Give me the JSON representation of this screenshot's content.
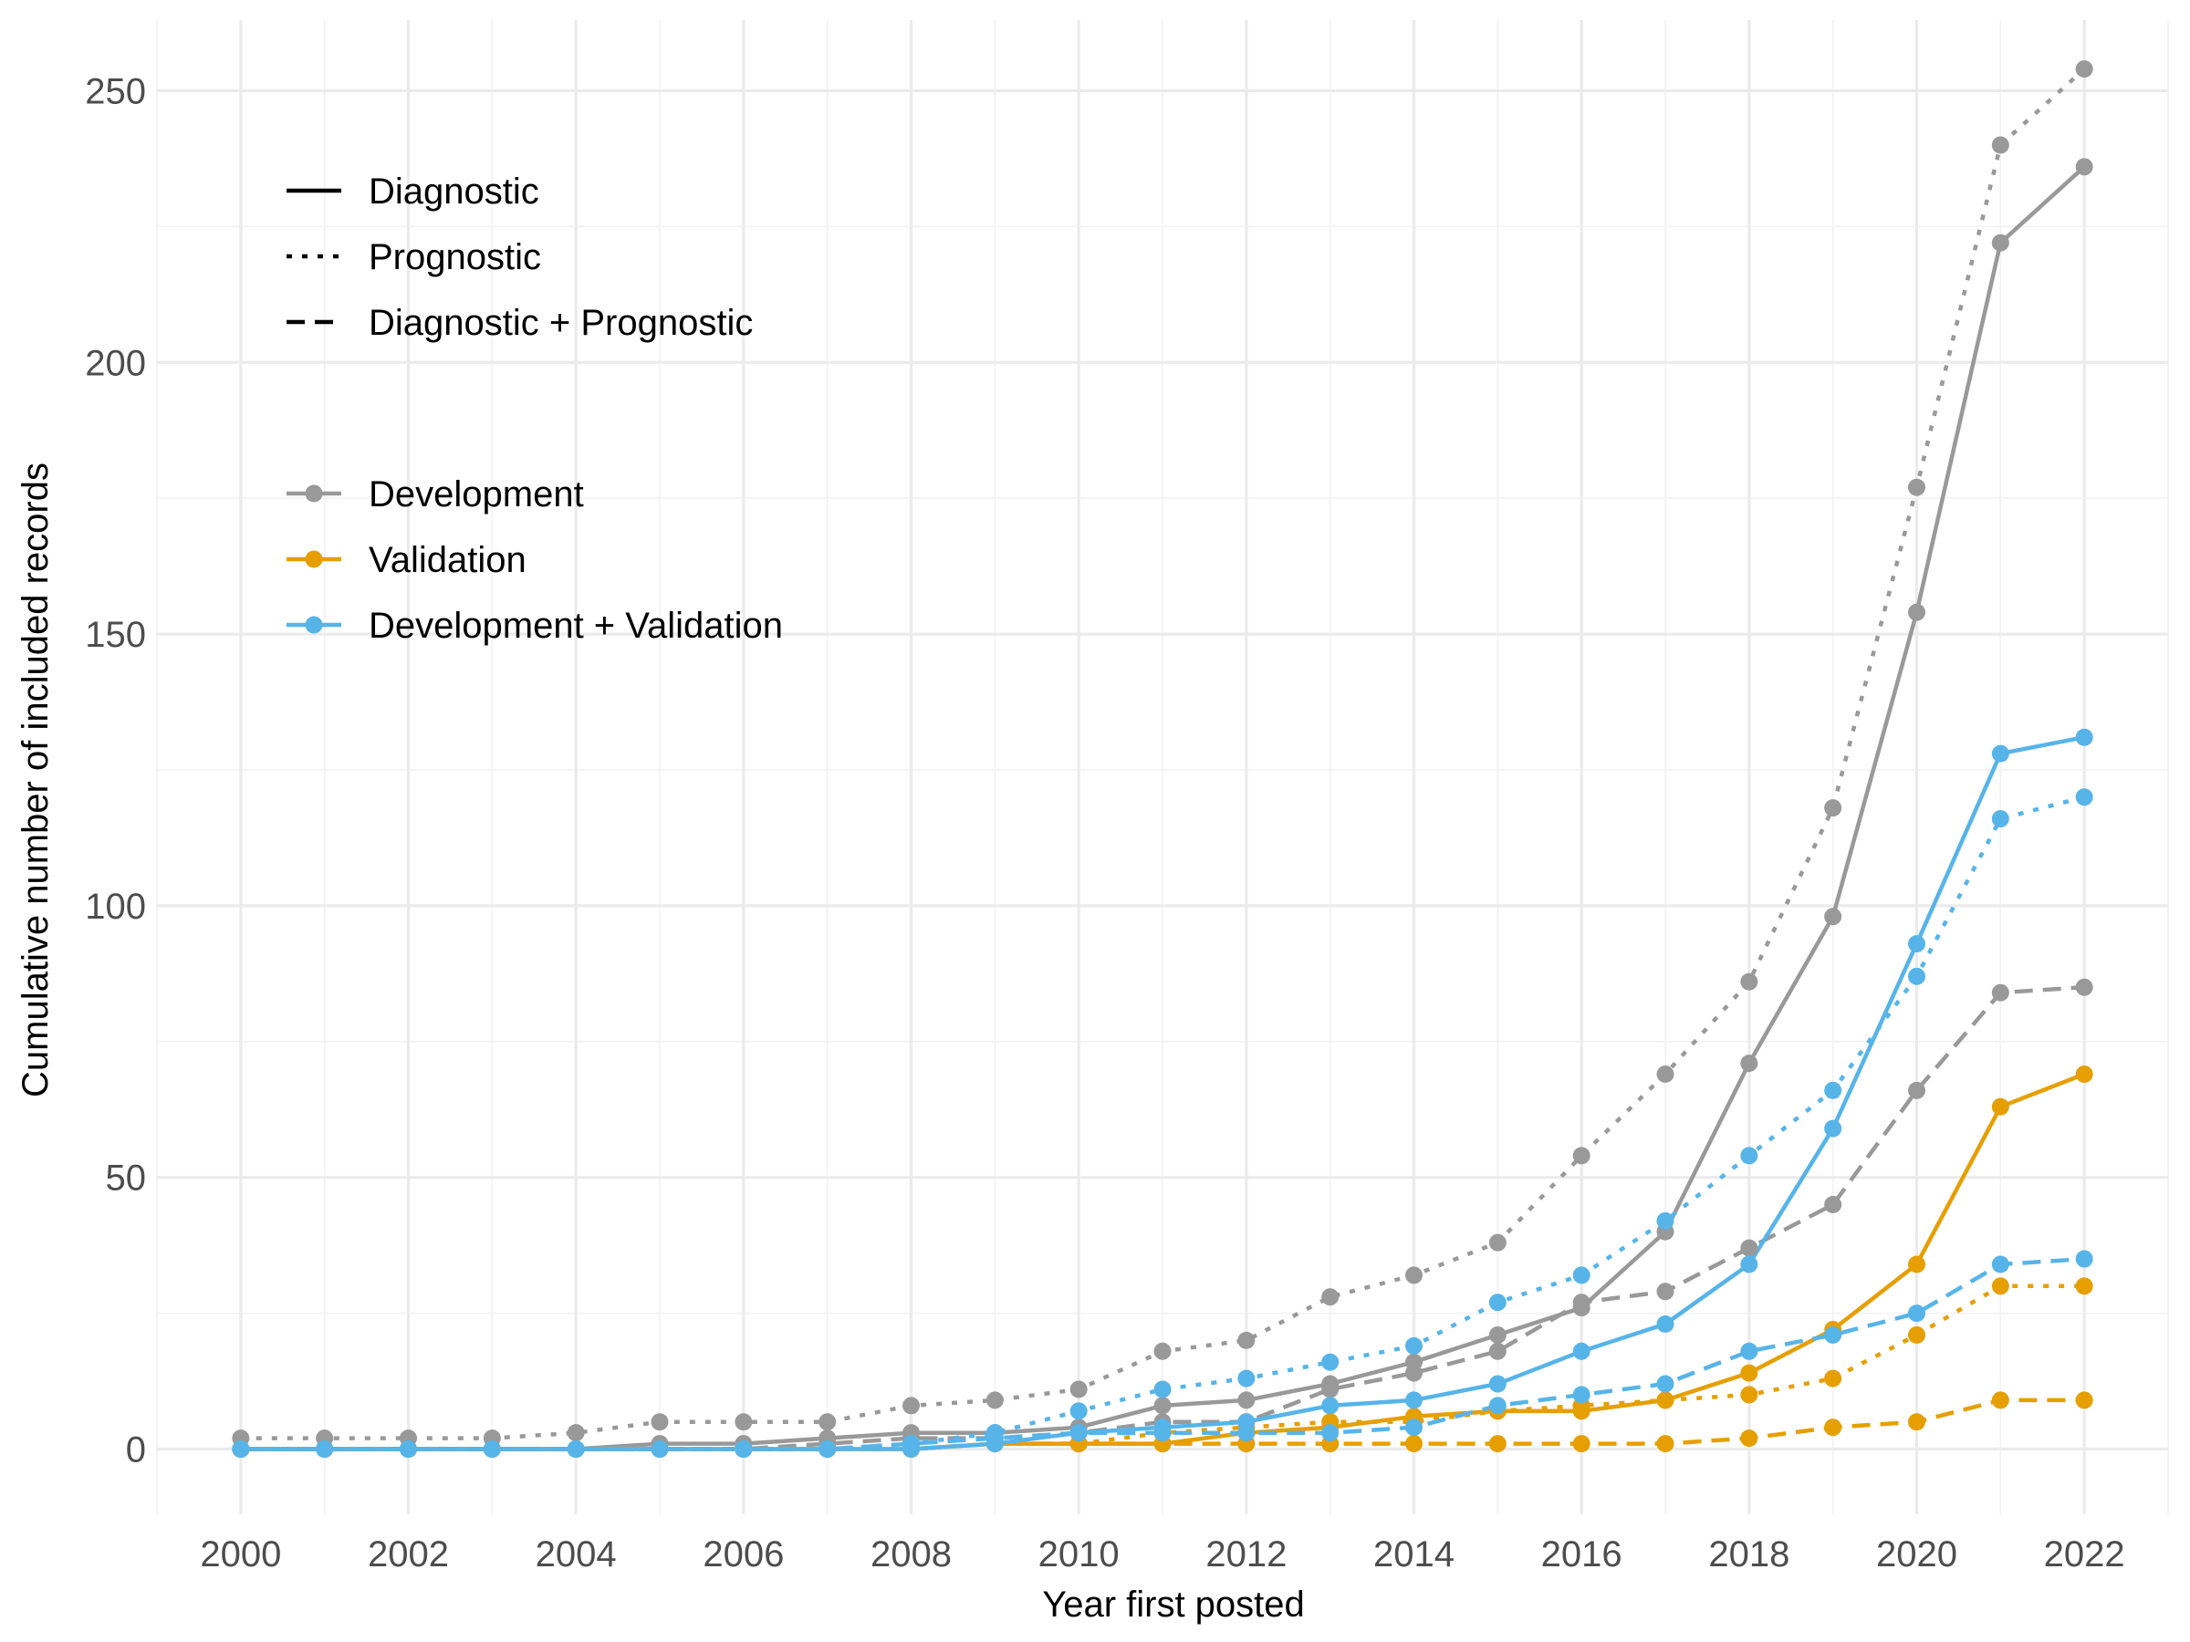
{
  "chart_data": {
    "type": "line",
    "xlabel": "Year first posted",
    "ylabel": "Cumulative number of included records",
    "xlim": [
      1999,
      2023
    ],
    "ylim": [
      -12,
      263
    ],
    "x_ticks": [
      2000,
      2002,
      2004,
      2006,
      2008,
      2010,
      2012,
      2014,
      2016,
      2018,
      2020,
      2022
    ],
    "y_ticks": [
      0,
      50,
      100,
      150,
      200,
      250
    ],
    "grid": true,
    "legend": {
      "placement": "top-left",
      "linetype_entries": [
        {
          "label": "Diagnostic",
          "dash": "solid"
        },
        {
          "label": "Prognostic",
          "dash": "dotted"
        },
        {
          "label": "Diagnostic + Prognostic",
          "dash": "dashed"
        }
      ],
      "color_entries": [
        {
          "label": "Development",
          "color": "#999999"
        },
        {
          "label": "Validation",
          "color": "#E69F00"
        },
        {
          "label": "Development + Validation",
          "color": "#56B4E9"
        }
      ]
    },
    "x": [
      2000,
      2001,
      2002,
      2003,
      2004,
      2005,
      2006,
      2007,
      2008,
      2009,
      2010,
      2011,
      2012,
      2013,
      2014,
      2015,
      2016,
      2017,
      2018,
      2019,
      2020,
      2021,
      2022
    ],
    "series": [
      {
        "name": "Development",
        "subtype": "Prognostic",
        "color": "#999999",
        "dash": "dotted",
        "values": [
          2,
          2,
          2,
          2,
          3,
          5,
          5,
          5,
          8,
          9,
          11,
          18,
          20,
          28,
          32,
          38,
          54,
          69,
          86,
          118,
          177,
          240,
          254
        ]
      },
      {
        "name": "Development",
        "subtype": "Diagnostic",
        "color": "#999999",
        "dash": "solid",
        "values": [
          0,
          0,
          0,
          0,
          0,
          1,
          1,
          2,
          3,
          3,
          4,
          8,
          9,
          12,
          16,
          21,
          26,
          40,
          71,
          98,
          154,
          222,
          236
        ]
      },
      {
        "name": "Development",
        "subtype": "Diagnostic + Prognostic",
        "color": "#999999",
        "dash": "dashed",
        "values": [
          0,
          0,
          0,
          0,
          0,
          0,
          0,
          1,
          2,
          2,
          3,
          5,
          5,
          11,
          14,
          18,
          27,
          29,
          37,
          45,
          66,
          84,
          85
        ]
      },
      {
        "name": "Validation",
        "subtype": "Diagnostic",
        "color": "#E69F00",
        "dash": "solid",
        "values": [
          0,
          0,
          0,
          0,
          0,
          0,
          0,
          0,
          0,
          1,
          1,
          1,
          3,
          4,
          6,
          7,
          7,
          9,
          14,
          22,
          34,
          63,
          69
        ]
      },
      {
        "name": "Validation",
        "subtype": "Prognostic",
        "color": "#E69F00",
        "dash": "dotted",
        "values": [
          0,
          0,
          0,
          0,
          0,
          0,
          0,
          0,
          0,
          1,
          1,
          3,
          4,
          5,
          5,
          7,
          8,
          9,
          10,
          13,
          21,
          30,
          30
        ]
      },
      {
        "name": "Validation",
        "subtype": "Diagnostic + Prognostic",
        "color": "#E69F00",
        "dash": "dashed",
        "values": [
          0,
          0,
          0,
          0,
          0,
          0,
          0,
          0,
          0,
          1,
          1,
          1,
          1,
          1,
          1,
          1,
          1,
          1,
          2,
          4,
          5,
          9,
          9
        ]
      },
      {
        "name": "Development + Validation",
        "subtype": "Diagnostic",
        "color": "#56B4E9",
        "dash": "solid",
        "values": [
          0,
          0,
          0,
          0,
          0,
          0,
          0,
          0,
          0,
          1,
          3,
          4,
          5,
          8,
          9,
          12,
          18,
          23,
          34,
          59,
          93,
          128,
          131
        ]
      },
      {
        "name": "Development + Validation",
        "subtype": "Prognostic",
        "color": "#56B4E9",
        "dash": "dotted",
        "values": [
          0,
          0,
          0,
          0,
          0,
          0,
          0,
          0,
          1,
          3,
          7,
          11,
          13,
          16,
          19,
          27,
          32,
          42,
          54,
          66,
          87,
          116,
          120
        ]
      },
      {
        "name": "Development + Validation",
        "subtype": "Diagnostic + Prognostic",
        "color": "#56B4E9",
        "dash": "dashed",
        "values": [
          0,
          0,
          0,
          0,
          0,
          0,
          0,
          0,
          1,
          2,
          3,
          3,
          3,
          3,
          4,
          8,
          10,
          12,
          18,
          21,
          25,
          34,
          35
        ]
      }
    ]
  }
}
